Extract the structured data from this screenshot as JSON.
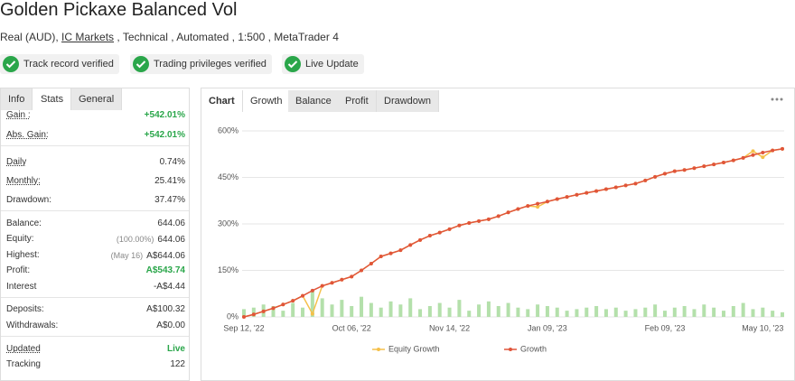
{
  "header": {
    "title": "Golden Pickaxe Balanced Vol",
    "subtitle_before": "Real (AUD),",
    "broker": "IC Markets",
    "subtitle_after": ", Technical , Automated , 1:500 , MetaTrader 4"
  },
  "badges": [
    "Track record verified",
    "Trading privileges verified",
    "Live Update"
  ],
  "stats_tabs": [
    "Info",
    "Stats",
    "General"
  ],
  "stats": [
    [
      {
        "label": "Gain :",
        "value": "+542.01%",
        "color": "#2aa64a",
        "underline": true
      },
      {
        "label": "Abs. Gain:",
        "value": "+542.01%",
        "color": "#2aa64a",
        "underline": true
      }
    ],
    [
      {
        "label": "Daily",
        "value": "0.74%",
        "underline": true
      },
      {
        "label": "Monthly:",
        "value": "25.41%",
        "underline": true
      },
      {
        "label": "Drawdown:",
        "value": "37.47%"
      }
    ],
    [
      {
        "label": "Balance:",
        "value": "644.06"
      },
      {
        "label": "Equity:",
        "note": "(100.00%)",
        "value": "644.06"
      },
      {
        "label": "Highest:",
        "note": "(May 16)",
        "value": "A$644.06"
      },
      {
        "label": "Profit:",
        "value": "A$543.74",
        "color": "#2aa64a"
      },
      {
        "label": "Interest",
        "value": "-A$4.44"
      }
    ],
    [
      {
        "label": "Deposits:",
        "value": "A$100.32"
      },
      {
        "label": "Withdrawals:",
        "value": "A$0.00"
      }
    ],
    [
      {
        "label": "Updated",
        "value": "Live",
        "color": "#2aa64a",
        "underline": true
      },
      {
        "label": "Tracking",
        "value": "122"
      }
    ]
  ],
  "chart_tabs": [
    "Chart",
    "Growth",
    "Balance",
    "Profit",
    "Drawdown"
  ],
  "chart_data": {
    "type": "line",
    "categories": [
      "Sep 12, '22",
      null,
      null,
      null,
      null,
      null,
      null,
      null,
      null,
      null,
      null,
      "Oct 06, '22",
      null,
      null,
      null,
      null,
      null,
      null,
      null,
      null,
      null,
      "Nov 14, '22",
      null,
      null,
      null,
      null,
      null,
      null,
      null,
      null,
      null,
      "Jan 09, '23",
      null,
      null,
      null,
      null,
      null,
      null,
      null,
      null,
      null,
      null,
      null,
      "Feb 09, '23",
      null,
      null,
      null,
      null,
      null,
      null,
      null,
      null,
      null,
      "May 10, '23",
      null,
      null
    ],
    "ylim": [
      0,
      600
    ],
    "yticks": [
      {
        "value": 0,
        "label": "0%"
      },
      {
        "value": 150,
        "label": "150%"
      },
      {
        "value": 300,
        "label": "300%"
      },
      {
        "value": 450,
        "label": "450%"
      },
      {
        "value": 600,
        "label": "600%"
      }
    ],
    "grid": true,
    "series": [
      {
        "name": "Equity Growth",
        "color": "#f5c04a",
        "values": [
          0,
          8,
          18,
          28,
          40,
          52,
          68,
          10,
          100,
          110,
          120,
          130,
          150,
          172,
          195,
          205,
          215,
          232,
          248,
          262,
          272,
          283,
          295,
          303,
          309,
          315,
          325,
          337,
          348,
          358,
          355,
          372,
          380,
          387,
          394,
          400,
          406,
          412,
          418,
          424,
          430,
          440,
          452,
          462,
          470,
          474,
          480,
          486,
          492,
          498,
          505,
          513,
          535,
          515,
          537,
          542
        ]
      },
      {
        "name": "Growth",
        "color": "#e0553a",
        "values": [
          0,
          8,
          18,
          28,
          40,
          52,
          68,
          85,
          100,
          110,
          120,
          130,
          150,
          172,
          195,
          205,
          215,
          232,
          248,
          262,
          272,
          283,
          295,
          303,
          309,
          315,
          325,
          337,
          348,
          358,
          365,
          372,
          380,
          387,
          394,
          400,
          406,
          412,
          418,
          424,
          430,
          440,
          452,
          462,
          470,
          474,
          480,
          486,
          492,
          498,
          505,
          513,
          522,
          530,
          537,
          542
        ]
      },
      {
        "type": "bar",
        "color": "#b4e0ab",
        "values": [
          25,
          30,
          40,
          35,
          20,
          45,
          30,
          85,
          60,
          40,
          55,
          35,
          65,
          45,
          30,
          50,
          40,
          60,
          25,
          35,
          45,
          30,
          55,
          20,
          40,
          50,
          35,
          45,
          30,
          25,
          40,
          35,
          30,
          20,
          25,
          30,
          35,
          25,
          30,
          20,
          25,
          30,
          40,
          20,
          30,
          35,
          25,
          40,
          30,
          20,
          35,
          45,
          25,
          30,
          20,
          15
        ]
      }
    ]
  }
}
